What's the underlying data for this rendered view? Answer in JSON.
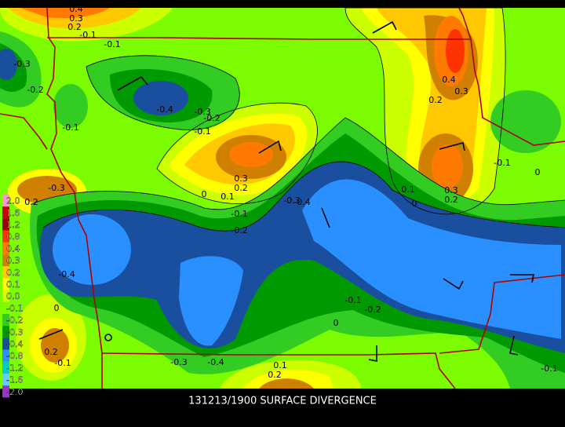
{
  "title": "131213/1900 SURFACE DIVERGENCE",
  "legend": [
    {
      "label": "2.0",
      "color": "#ff99cc"
    },
    {
      "label": "1.6",
      "color": "#cc0000"
    },
    {
      "label": "1.2",
      "color": "#990000"
    },
    {
      "label": "0.8",
      "color": "#ff3300"
    },
    {
      "label": "0.4",
      "color": "#ff7a00"
    },
    {
      "label": "0.3",
      "color": "#d08000"
    },
    {
      "label": "0.2",
      "color": "#ffc800"
    },
    {
      "label": "0.1",
      "color": "#ffff00"
    },
    {
      "label": "0.0",
      "color": "#ccff00"
    },
    {
      "label": "-0.1",
      "color": "#7cfc00"
    },
    {
      "label": "-0.2",
      "color": "#33cc22"
    },
    {
      "label": "-0.3",
      "color": "#009900"
    },
    {
      "label": "-0.4",
      "color": "#1a4fa0"
    },
    {
      "label": "-0.8",
      "color": "#2a90ff"
    },
    {
      "label": "-1.2",
      "color": "#00cccc"
    },
    {
      "label": "-1.6",
      "color": "#66ccff"
    },
    {
      "label": "-2.0",
      "color": "#9933cc"
    }
  ],
  "contour_labels": [
    "0.4",
    "0.3",
    "0.2",
    "-0.1",
    "-0.1",
    "-0.3",
    "-0.2",
    "-0.1",
    "-0.4",
    "-0.3",
    "-0.2",
    "-0.1",
    "0.3",
    "0.2",
    "0.1",
    "0",
    "-0.1",
    "-0.2",
    "-0.3",
    "-0.4",
    "-0.3",
    "0.2",
    "-0.4",
    "0.4",
    "0.3",
    "0.2",
    "-0.1",
    "0",
    "0.1",
    "0.3",
    "0.2",
    "0",
    "-0.1",
    "-0.2",
    "0",
    "0",
    "0.2",
    "-0.1",
    "-0.3",
    "-0.4",
    "0.1",
    "0.2",
    "-0.1"
  ]
}
